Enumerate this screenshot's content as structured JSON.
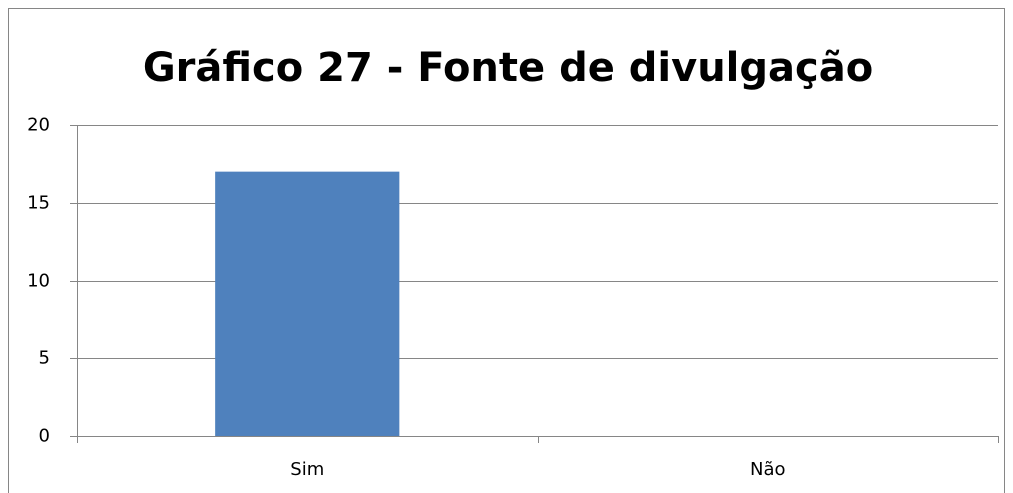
{
  "chart_data": {
    "type": "bar",
    "title": "Gráfico 27 - Fonte de divulgação",
    "categories": [
      "Sim",
      "Não"
    ],
    "values": [
      17,
      0
    ],
    "color": "#4f81bd",
    "ylim": [
      0,
      20
    ],
    "yticks": [
      0,
      5,
      10,
      15,
      20
    ],
    "grid": true
  }
}
